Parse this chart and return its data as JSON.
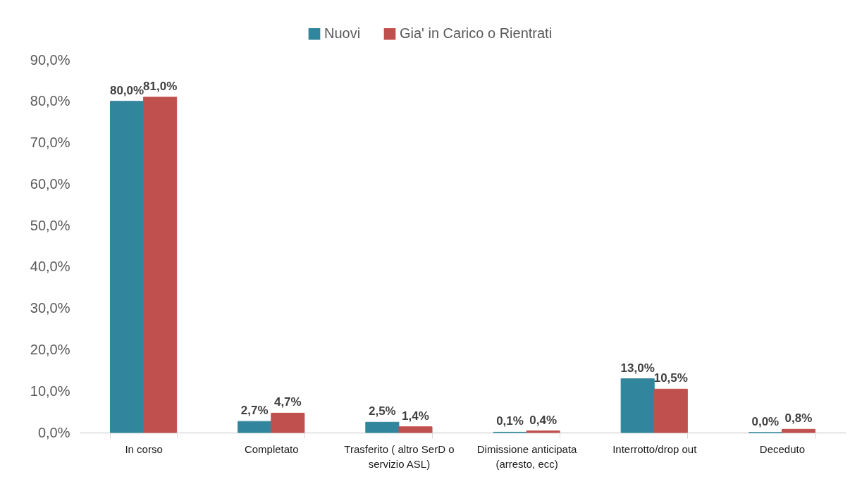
{
  "chart_data": {
    "type": "bar",
    "categories": [
      "In corso",
      "Completato",
      "Trasferito ( altro SerD o servizio ASL)",
      "Dimissione anticipata (arresto, ecc)",
      "Interrotto/drop out",
      "Deceduto"
    ],
    "series": [
      {
        "name": "Nuovi",
        "color": "#31859c",
        "values": [
          80.0,
          2.7,
          2.5,
          0.1,
          13.0,
          0.0
        ],
        "value_labels": [
          "80,0%",
          "2,7%",
          "2,5%",
          "0,1%",
          "13,0%",
          "0,0%"
        ]
      },
      {
        "name": "Gia' in Carico o Rientrati",
        "color": "#c0504d",
        "values": [
          81.0,
          4.7,
          1.4,
          0.4,
          10.5,
          0.8
        ],
        "value_labels": [
          "81,0%",
          "4,7%",
          "1,4%",
          "0,4%",
          "10,5%",
          "0,8%"
        ]
      }
    ],
    "ylim": [
      0,
      90
    ],
    "yticks": [
      {
        "value": 0,
        "label": "0,0%"
      },
      {
        "value": 10,
        "label": "10,0%"
      },
      {
        "value": 20,
        "label": "20,0%"
      },
      {
        "value": 30,
        "label": "30,0%"
      },
      {
        "value": 40,
        "label": "40,0%"
      },
      {
        "value": 50,
        "label": "50,0%"
      },
      {
        "value": 60,
        "label": "60,0%"
      },
      {
        "value": 70,
        "label": "70,0%"
      },
      {
        "value": 80,
        "label": "80,0%"
      },
      {
        "value": 90,
        "label": "90,0%"
      }
    ],
    "legend": "top"
  }
}
